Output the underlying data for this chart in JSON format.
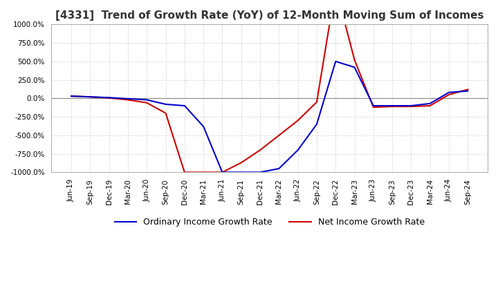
{
  "title": "[4331]  Trend of Growth Rate (YoY) of 12-Month Moving Sum of Incomes",
  "title_fontsize": 11,
  "background_color": "#ffffff",
  "grid_color": "#c8c8c8",
  "ylim": [
    -1000,
    1000
  ],
  "yticks": [
    1000,
    750,
    500,
    250,
    0,
    -250,
    -500,
    -750,
    -1000
  ],
  "x_labels": [
    "Jun-19",
    "Sep-19",
    "Dec-19",
    "Mar-20",
    "Jun-20",
    "Sep-20",
    "Dec-20",
    "Mar-21",
    "Jun-21",
    "Sep-21",
    "Dec-21",
    "Mar-22",
    "Jun-22",
    "Sep-22",
    "Dec-22",
    "Mar-23",
    "Jun-23",
    "Sep-23",
    "Dec-23",
    "Mar-24",
    "Jun-24",
    "Sep-24"
  ],
  "ordinary_income": [
    30,
    20,
    10,
    -5,
    -20,
    -80,
    -100,
    -380,
    -1000,
    -1000,
    -1000,
    -950,
    -700,
    -350,
    500,
    420,
    -100,
    -100,
    -100,
    -70,
    80,
    100
  ],
  "net_income": [
    30,
    20,
    5,
    -20,
    -60,
    -200,
    -1000,
    -1000,
    -1000,
    -870,
    -700,
    -500,
    -300,
    -50,
    1500,
    520,
    -120,
    -110,
    -110,
    -100,
    50,
    120
  ],
  "ordinary_color": "#0000cc",
  "net_color": "#cc0000",
  "line_width": 1.5,
  "legend_labels": [
    "Ordinary Income Growth Rate",
    "Net Income Growth Rate"
  ],
  "legend_fontsize": 9,
  "tick_fontsize": 7.5,
  "xlabel_rotation": 90
}
